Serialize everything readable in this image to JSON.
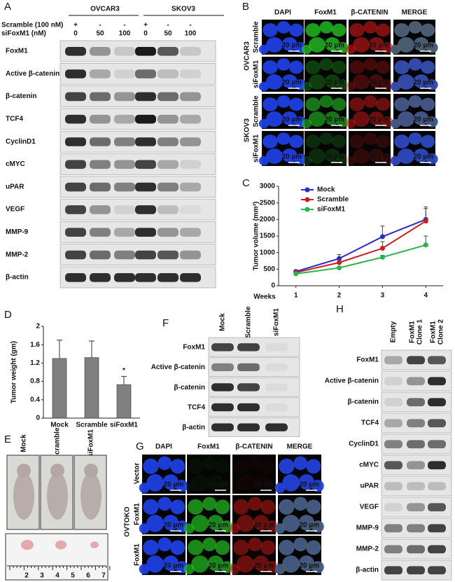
{
  "panel_labels": {
    "a": "A",
    "b": "B",
    "c": "C",
    "d": "D",
    "e": "E",
    "f": "F",
    "g": "G",
    "h": "H"
  },
  "panel_a": {
    "cell_lines": [
      "OVCAR3",
      "SKOV3"
    ],
    "conditions": [
      {
        "label": "Scramble (100 nM)",
        "marks": [
          "+",
          "-",
          "-",
          "+",
          "-",
          "-"
        ]
      },
      {
        "label": "siFoxM1 (nM)",
        "marks": [
          "0",
          "50",
          "100",
          "0",
          "50",
          "100"
        ]
      }
    ],
    "rows": [
      "FoxM1",
      "Active β-catenin",
      "β-catenin",
      "TCF4",
      "CyclinD1",
      "cMYC",
      "uPAR",
      "VEGF",
      "MMP-9",
      "MMP-2",
      "β-actin"
    ]
  },
  "panel_b": {
    "columns": [
      "DAPI",
      "FoxM1",
      "β-CATENIN",
      "MERGE"
    ],
    "groups": [
      {
        "name": "OVCAR3",
        "rows": [
          "Scramble",
          "siFoxM1"
        ]
      },
      {
        "name": "SKOV3",
        "rows": [
          "Scramble",
          "siFoxM1"
        ]
      }
    ],
    "scale_bar": "20 µm"
  },
  "panel_e": {
    "columns": [
      "Mock",
      "Scramble",
      "siFoxM1"
    ],
    "ruler": [
      "2",
      "3",
      "4",
      "5",
      "6",
      "7"
    ]
  },
  "panel_f": {
    "columns": [
      "Mock",
      "Scramble",
      "siFoxM1"
    ],
    "rows": [
      "FoxM1",
      "Active β-catenin",
      "β-catenin",
      "TCF4",
      "β-actin"
    ]
  },
  "panel_g": {
    "columns": [
      "DAPI",
      "FoxM1",
      "β-CATENIN",
      "MERGE"
    ],
    "group": "OVTOKO",
    "rows": [
      "Vector",
      "FoxM1",
      "FoxM1"
    ],
    "scale_bar": "20 µm"
  },
  "panel_h": {
    "columns": [
      [
        "Empty"
      ],
      [
        "FoxM1",
        "Clone 1"
      ],
      [
        "FoxM1",
        "Clone 2"
      ]
    ],
    "rows": [
      "FoxM1",
      "Active β-catenin",
      "β-catenin",
      "TCF4",
      "CyclinD1",
      "cMYC",
      "uPAR",
      "VEGF",
      "MMP-9",
      "MMP-2",
      "β-actin"
    ]
  },
  "chart_data": [
    {
      "type": "line",
      "y_label": "Tumor volume (mm³)",
      "x_label": "Weeks",
      "x": [
        1,
        2,
        3,
        4
      ],
      "xlim": [
        0.6,
        4.4
      ],
      "xticks": [
        1,
        2,
        3,
        4
      ],
      "ylim": [
        0,
        3000
      ],
      "yticks": [
        0,
        500,
        1000,
        1500,
        2000,
        2500,
        3000
      ],
      "legend": "upper left",
      "series": [
        {
          "name": "Mock",
          "color": "#2b2bc8",
          "values": [
            430,
            820,
            1480,
            2000
          ],
          "errors": [
            40,
            120,
            320,
            380
          ]
        },
        {
          "name": "Scramble",
          "color": "#c81e1e",
          "values": [
            400,
            700,
            1130,
            1950
          ],
          "errors": [
            30,
            80,
            200,
            380
          ]
        },
        {
          "name": "siFoxM1",
          "color": "#2ab34a",
          "values": [
            360,
            540,
            860,
            1230
          ],
          "errors": [
            20,
            40,
            60,
            270
          ]
        }
      ]
    },
    {
      "type": "bar",
      "y_label": "Tumor weight (gm)",
      "categories": [
        "Mock",
        "Scramble",
        "siFoxM1"
      ],
      "values": [
        1.3,
        1.32,
        0.73
      ],
      "errors": [
        0.4,
        0.36,
        0.18
      ],
      "color": "#808080",
      "ylim": [
        0,
        2
      ],
      "yticks": [
        0,
        0.4,
        0.8,
        1.2,
        1.6,
        2
      ],
      "annotations": [
        {
          "text": "*",
          "x": "siFoxM1"
        }
      ]
    }
  ]
}
